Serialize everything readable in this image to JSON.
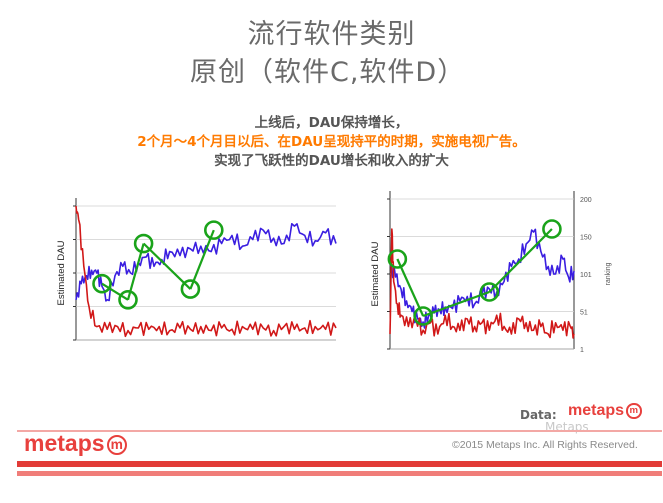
{
  "title_line1": "流行软件类别",
  "title_line2": "原创（软件C,软件D）",
  "description": {
    "line1": "上线后，DAU保持增长，",
    "line2": "2个月～4个月目以后、在DAU呈现持平的时期，实施电视广告。",
    "line3": "实现了飞跃性的DAU增长和收入的扩大"
  },
  "colors": {
    "dau": "#3a1ee0",
    "ranking": "#d11818",
    "highlight": "#1aa31a",
    "accent": "#e8403d"
  },
  "chart_data": [
    {
      "type": "line",
      "ylabel": "Estimated DAU",
      "y_ticks": [
        "",
        "",
        "",
        "",
        ""
      ],
      "series": [
        {
          "name": "",
          "axis": "left",
          "x": [
            0,
            2,
            4,
            6,
            8,
            10,
            12,
            15,
            18,
            21,
            24,
            27,
            30,
            33,
            36,
            40,
            44,
            48,
            52,
            56,
            60,
            64,
            68,
            72,
            76,
            80,
            84,
            88,
            92,
            96,
            100
          ],
          "values": [
            0.3,
            0.42,
            0.48,
            0.52,
            0.5,
            0.4,
            0.3,
            0.48,
            0.55,
            0.5,
            0.58,
            0.62,
            0.55,
            0.6,
            0.66,
            0.63,
            0.68,
            0.7,
            0.66,
            0.72,
            0.78,
            0.7,
            0.75,
            0.82,
            0.76,
            0.72,
            0.85,
            0.78,
            0.74,
            0.8,
            0.72
          ]
        },
        {
          "name": "",
          "axis": "left",
          "x": [
            0,
            1,
            3,
            5,
            8,
            12,
            16,
            20,
            24,
            28,
            32,
            36,
            40,
            44,
            48,
            52,
            56,
            60,
            64,
            68,
            72,
            76,
            80,
            84,
            88,
            92,
            96,
            100
          ],
          "values": [
            1.0,
            0.9,
            0.55,
            0.25,
            0.1,
            0.08,
            0.1,
            0.07,
            0.09,
            0.08,
            0.1,
            0.07,
            0.09,
            0.08,
            0.1,
            0.07,
            0.09,
            0.08,
            0.1,
            0.08,
            0.09,
            0.07,
            0.1,
            0.08,
            0.09,
            0.1,
            0.08,
            0.09
          ]
        }
      ],
      "annotations": [
        {
          "shape": "circle",
          "x": 10,
          "y": 0.42
        },
        {
          "shape": "circle",
          "x": 20,
          "y": 0.3
        },
        {
          "shape": "circle",
          "x": 26,
          "y": 0.72
        },
        {
          "shape": "circle",
          "x": 44,
          "y": 0.38
        },
        {
          "shape": "circle",
          "x": 53,
          "y": 0.82
        }
      ]
    },
    {
      "type": "line",
      "ylabel": "Estimated DAU",
      "y2label": "ranking",
      "y2_ticks": [
        "200",
        "150",
        "101",
        "51",
        "1"
      ],
      "series": [
        {
          "name": "",
          "axis": "left",
          "x": [
            0,
            3,
            6,
            9,
            12,
            15,
            18,
            21,
            24,
            27,
            30,
            34,
            38,
            42,
            46,
            50,
            54,
            58,
            62,
            66,
            70,
            74,
            78,
            82,
            86,
            90,
            94,
            97,
            100
          ],
          "values": [
            0.55,
            0.48,
            0.4,
            0.32,
            0.25,
            0.2,
            0.18,
            0.22,
            0.24,
            0.26,
            0.28,
            0.27,
            0.32,
            0.35,
            0.3,
            0.36,
            0.4,
            0.38,
            0.45,
            0.55,
            0.6,
            0.7,
            0.78,
            0.65,
            0.55,
            0.5,
            0.6,
            0.48,
            0.52
          ]
        },
        {
          "name": "",
          "axis": "right",
          "x": [
            0,
            1,
            2,
            4,
            6,
            10,
            14,
            18,
            22,
            26,
            30,
            34,
            38,
            42,
            46,
            50,
            54,
            58,
            62,
            66,
            70,
            74,
            78,
            82,
            86,
            90,
            94,
            98,
            100
          ],
          "values": [
            20,
            160,
            90,
            60,
            45,
            30,
            40,
            25,
            35,
            20,
            45,
            30,
            25,
            40,
            30,
            35,
            25,
            45,
            30,
            20,
            40,
            35,
            25,
            30,
            20,
            35,
            25,
            30,
            20
          ]
        }
      ],
      "annotations": [
        {
          "shape": "circle",
          "x": 4,
          "y": 0.6
        },
        {
          "shape": "circle",
          "x": 18,
          "y": 0.22
        },
        {
          "shape": "circle",
          "x": 54,
          "y": 0.38
        },
        {
          "shape": "circle",
          "x": 88,
          "y": 0.8
        }
      ]
    }
  ],
  "footer": {
    "data_label": "Data:",
    "logo_small": "metaps",
    "logo_mark": "m",
    "watermark": "Metaps",
    "logo_big": "metaps",
    "copyright": "©2015 Metaps Inc. All Rights Reserved."
  }
}
